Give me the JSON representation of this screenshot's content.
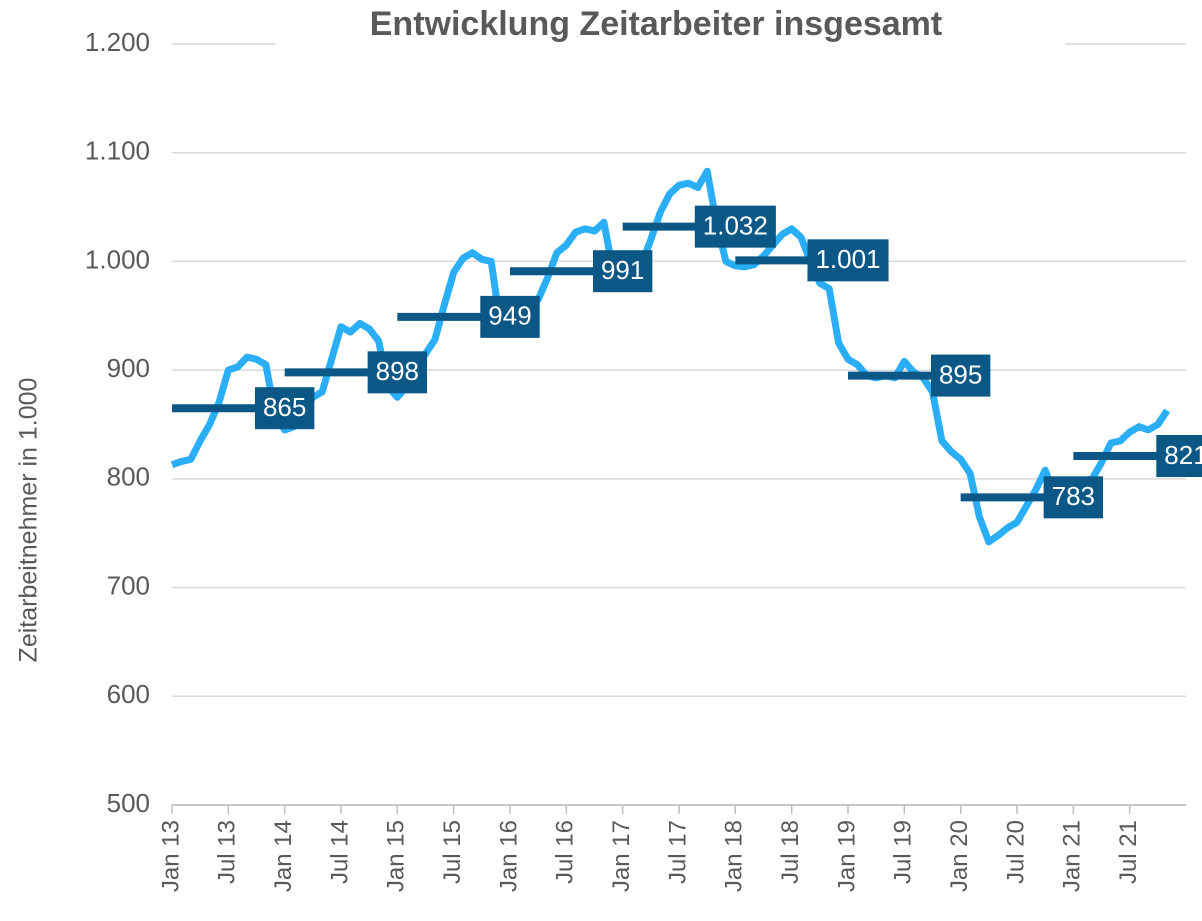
{
  "chart_data": {
    "type": "line",
    "title": "Entwicklung Zeitarbeiter insgesamt",
    "ylabel": "Zeitarbeitnehmer in 1.000",
    "categories": [
      "Jan 13",
      null,
      null,
      null,
      null,
      null,
      "Jul 13",
      null,
      null,
      null,
      null,
      null,
      "Jan 14",
      null,
      null,
      null,
      null,
      null,
      "Jul 14",
      null,
      null,
      null,
      null,
      null,
      "Jan 15",
      null,
      null,
      null,
      null,
      null,
      "Jul 15",
      null,
      null,
      null,
      null,
      null,
      "Jan 16",
      null,
      null,
      null,
      null,
      null,
      "Jul 16",
      null,
      null,
      null,
      null,
      null,
      "Jan 17",
      null,
      null,
      null,
      null,
      null,
      "Jul 17",
      null,
      null,
      null,
      null,
      null,
      "Jan 18",
      null,
      null,
      null,
      null,
      null,
      "Jul 18",
      null,
      null,
      null,
      null,
      null,
      "Jan 19",
      null,
      null,
      null,
      null,
      null,
      "Jul 19",
      null,
      null,
      null,
      null,
      null,
      "Jan 20",
      null,
      null,
      null,
      null,
      null,
      "Jul 20",
      null,
      null,
      null,
      null,
      null,
      "Jan 21",
      null,
      null,
      null,
      null,
      null,
      "Jul 21",
      null,
      null,
      null,
      null
    ],
    "series": [
      {
        "color": "#29aef7",
        "values": [
          813,
          816,
          818,
          835,
          850,
          870,
          900,
          903,
          912,
          910,
          905,
          858,
          845,
          848,
          862,
          875,
          880,
          910,
          940,
          935,
          943,
          938,
          927,
          885,
          875,
          885,
          900,
          915,
          928,
          960,
          990,
          1003,
          1008,
          1002,
          1000,
          940,
          935,
          945,
          960,
          965,
          985,
          1008,
          1015,
          1027,
          1030,
          1028,
          1036,
          990,
          985,
          990,
          997,
          1020,
          1045,
          1062,
          1070,
          1072,
          1068,
          1083,
          1035,
          1000,
          996,
          995,
          997,
          1005,
          1015,
          1025,
          1030,
          1022,
          1000,
          980,
          975,
          925,
          910,
          905,
          895,
          893,
          895,
          893,
          908,
          898,
          893,
          880,
          835,
          825,
          818,
          805,
          765,
          742,
          748,
          755,
          760,
          775,
          790,
          808,
          785,
          795,
          795,
          798,
          800,
          815,
          833,
          835,
          843,
          848,
          845,
          850,
          863
        ]
      }
    ],
    "annual_averages": {
      "color": "#0b5786",
      "values": [
        865,
        898,
        949,
        991,
        1032,
        1001,
        895,
        783,
        821
      ],
      "value_labels": [
        "865",
        "898",
        "949",
        "991",
        "1.032",
        "1.001",
        "895",
        "783",
        "821"
      ]
    },
    "ylim": [
      500,
      1200
    ],
    "yticks": [
      500,
      600,
      700,
      800,
      900,
      {
        "value": 1000,
        "label": "1.000"
      },
      {
        "value": 1100,
        "label": "1.100"
      },
      {
        "value": 1200,
        "label": "1.200"
      }
    ],
    "grid": true
  }
}
